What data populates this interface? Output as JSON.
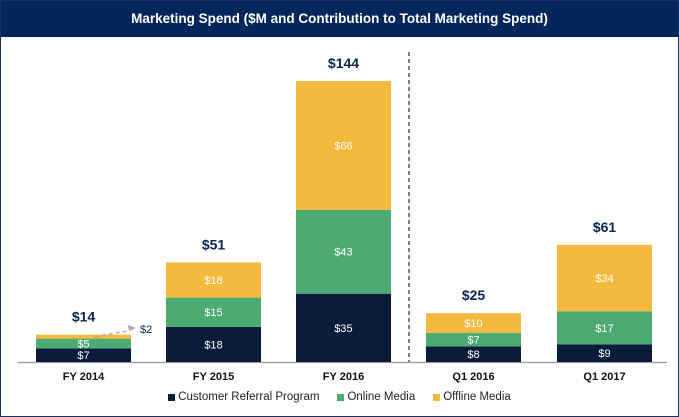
{
  "chart_data": {
    "type": "bar",
    "stacked": true,
    "title": "Marketing Spend ($M and Contribution to Total Marketing Spend)",
    "xlabel": "",
    "ylabel": "",
    "ylim": [
      0,
      144
    ],
    "grid": false,
    "legend_position": "bottom",
    "categories": [
      "FY 2014",
      "FY 2015",
      "FY 2016",
      "Q1 2016",
      "Q1 2017"
    ],
    "series": [
      {
        "name": "Customer Referral Program",
        "color": "#0a1c3a",
        "values": [
          7,
          18,
          35,
          8,
          9
        ],
        "labels": [
          "$7",
          "$18",
          "$35",
          "$8",
          "$9"
        ]
      },
      {
        "name": "Online Media",
        "color": "#4caa73",
        "values": [
          5,
          15,
          43,
          7,
          17
        ],
        "labels": [
          "$5",
          "$15",
          "$43",
          "$7",
          "$17"
        ]
      },
      {
        "name": "Offline Media",
        "color": "#f5b93e",
        "values": [
          2,
          18,
          66,
          10,
          34
        ],
        "labels": [
          "$2",
          "$18",
          "$66",
          "$10",
          "$34"
        ]
      }
    ],
    "totals": [
      14,
      51,
      144,
      25,
      61
    ],
    "total_labels": [
      "$14",
      "$51",
      "$144",
      "$25",
      "$61"
    ],
    "annotations": [
      {
        "text": "$2",
        "target": "FY 2014 Offline Media",
        "style": "dashed-arrow"
      }
    ],
    "divider": {
      "between": [
        "FY 2016",
        "Q1 2016"
      ],
      "style": "dashed"
    }
  },
  "colors": {
    "header_bg": "#03275b",
    "axis": "#999999",
    "divider": "#555555"
  }
}
